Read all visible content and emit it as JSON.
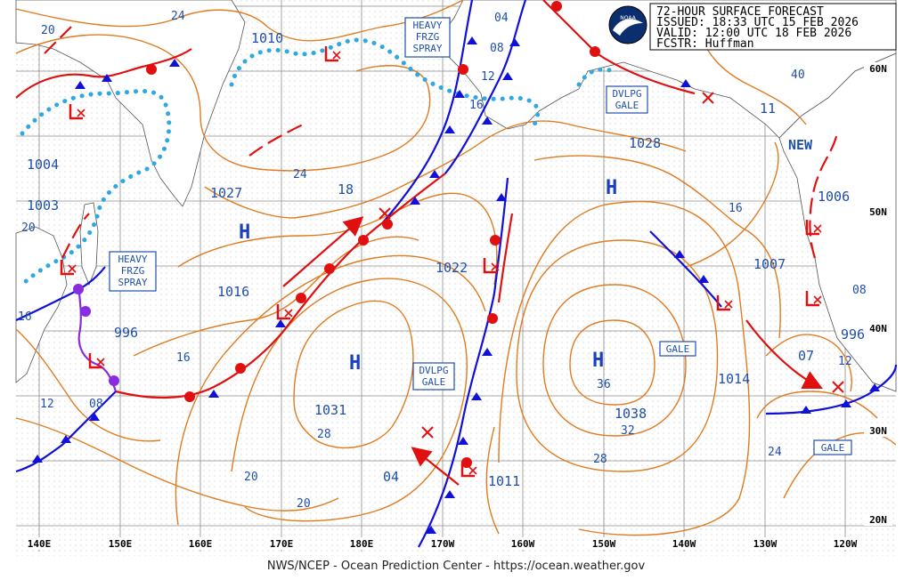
{
  "header": {
    "title": "72-HOUR SURFACE FORECAST",
    "issued": "ISSUED: 18:33 UTC 15 FEB 2026",
    "valid": "VALID:  12:00 UTC 18 FEB 2026",
    "forecaster": "FCSTR:  Huffman",
    "logo": "NOAA"
  },
  "credit": "NWS/NCEP - Ocean Prediction Center - https://ocean.weather.gov",
  "longitude_labels": [
    "140E",
    "150E",
    "160E",
    "170E",
    "180E",
    "170W",
    "160W",
    "150W",
    "140W",
    "130W",
    "120W"
  ],
  "latitude_labels": [
    "60N",
    "50N",
    "40N",
    "30N",
    "20N"
  ],
  "pressure_centers": [
    {
      "type": "H",
      "pressure": "1027"
    },
    {
      "type": "H",
      "pressure": "1031"
    },
    {
      "type": "H",
      "pressure": "1028"
    },
    {
      "type": "H",
      "pressure": "1038"
    },
    {
      "type": "L",
      "pressure": "1004"
    },
    {
      "type": "L",
      "pressure": "1003"
    },
    {
      "type": "L",
      "pressure": "996"
    },
    {
      "type": "L",
      "pressure": "1016"
    },
    {
      "type": "L",
      "pressure": "1010"
    },
    {
      "type": "L",
      "pressure": "1022"
    },
    {
      "type": "L",
      "pressure": "1011"
    },
    {
      "type": "L",
      "pressure": "1014"
    },
    {
      "type": "L",
      "pressure": "1007"
    },
    {
      "type": "L",
      "pressure": "1006"
    },
    {
      "type": "L",
      "pressure": "996"
    }
  ],
  "isobar_labels": [
    "24",
    "20",
    "16",
    "24",
    "18",
    "20",
    "16",
    "12",
    "08",
    "04",
    "08",
    "12",
    "16",
    "40",
    "11",
    "36",
    "32",
    "28",
    "28",
    "20",
    "24",
    "16",
    "12",
    "08",
    "07",
    "04"
  ],
  "warnings": [
    {
      "text": "HEAVY\nFRZG\nSPRAY"
    },
    {
      "text": "HEAVY\nFRZG\nSPRAY"
    },
    {
      "text": "DVLPG\nGALE"
    },
    {
      "text": "DVLPG\nGALE"
    },
    {
      "text": "GALE"
    },
    {
      "text": "GALE"
    }
  ],
  "labels_misc": {
    "new": "NEW"
  },
  "colors": {
    "isobar": "#e07b20",
    "warm_front": "#e01010",
    "cold_front": "#1010d8",
    "occluded": "#8a2be2",
    "freezing_spray": "#2fa8e0",
    "text": "#1f4fa8",
    "grid": "#888888"
  }
}
